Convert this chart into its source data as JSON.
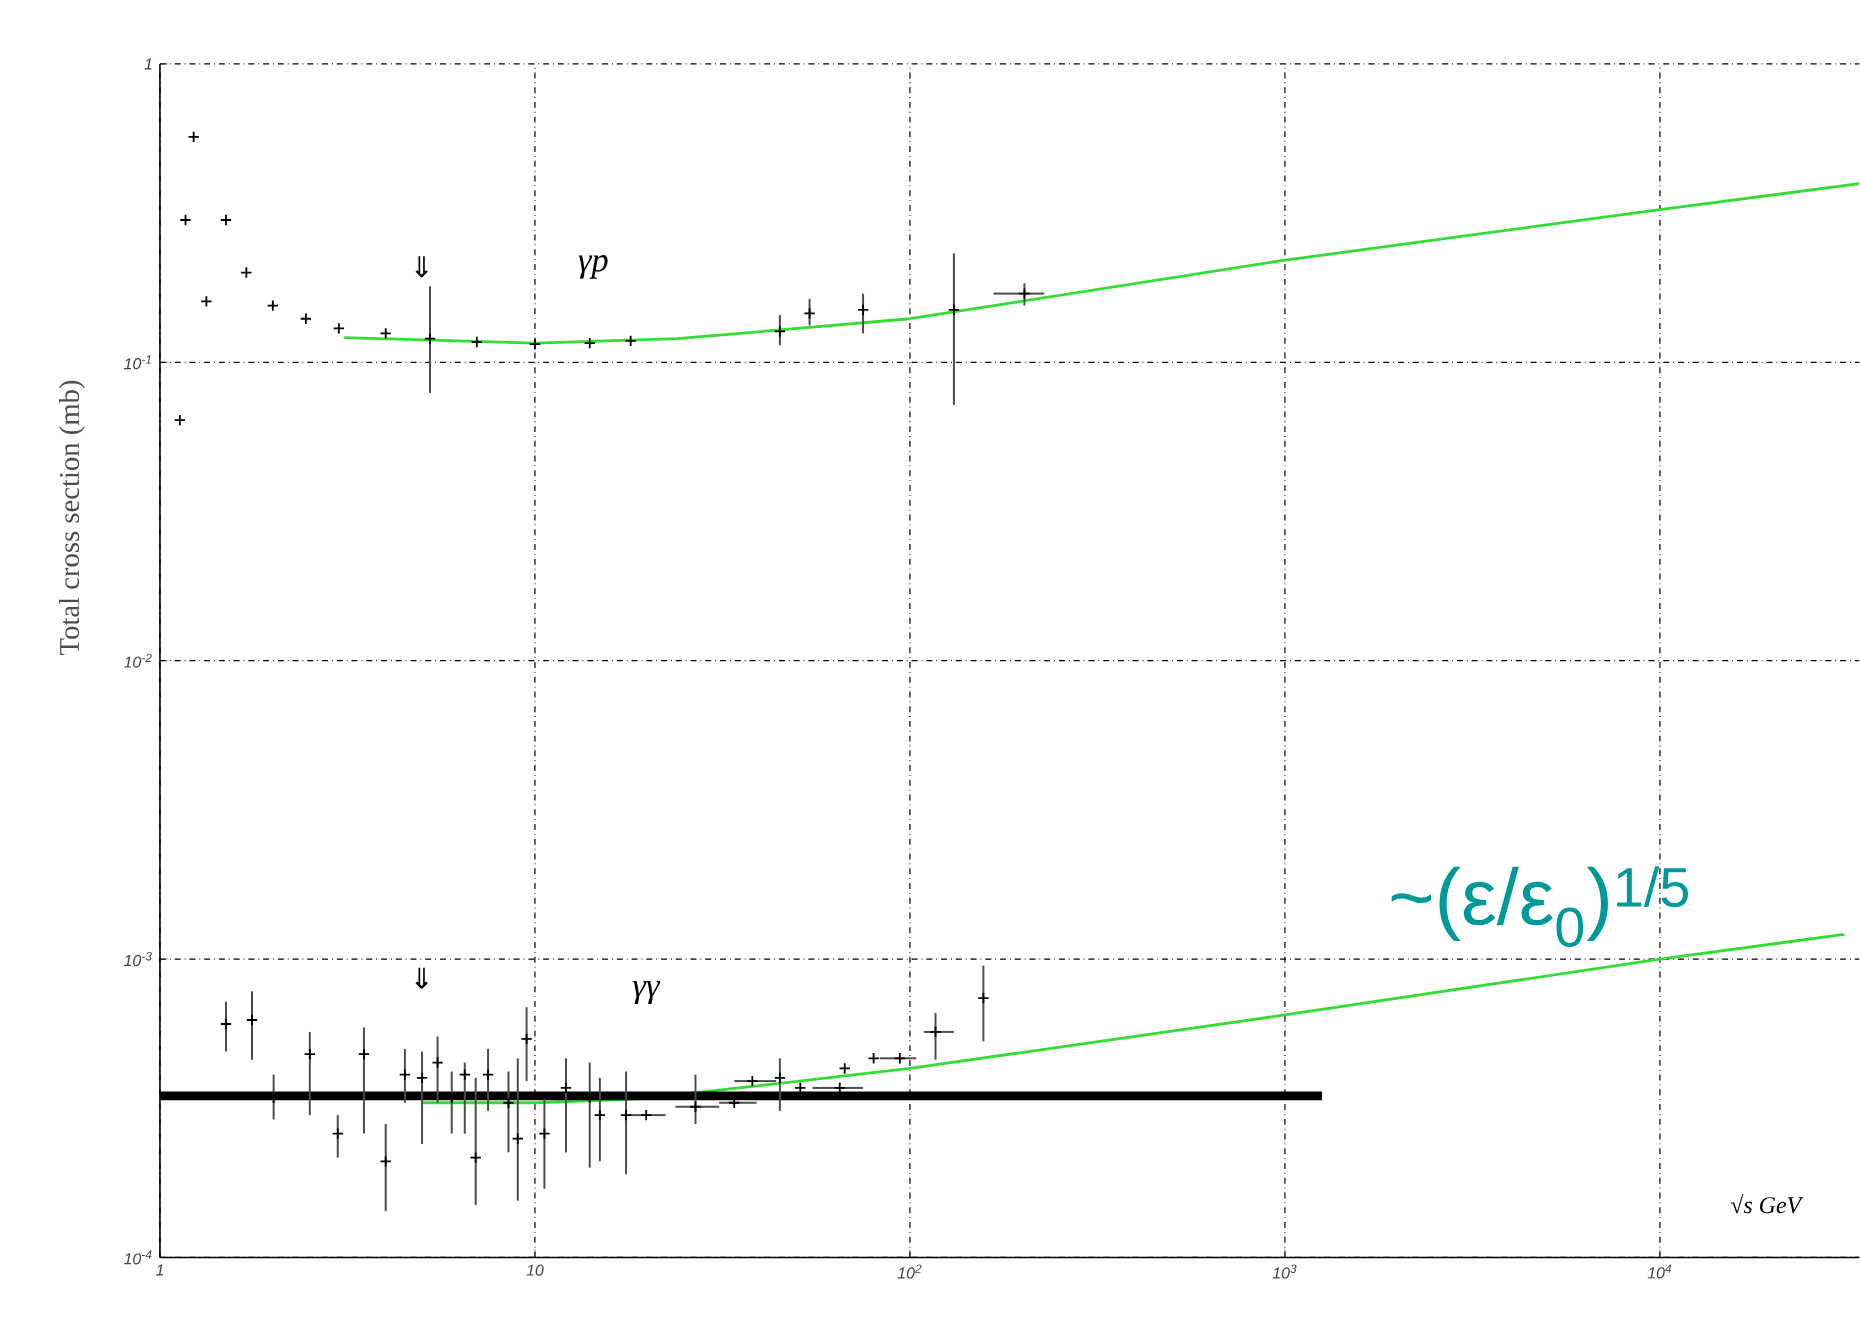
{
  "chart_data": {
    "type": "scatter",
    "ylabel": "Total cross section (mb)",
    "xlabel": "√s GeV",
    "log": "xy",
    "grid": true,
    "marker": "cross",
    "xlim": [
      1,
      34000
    ],
    "ylim": [
      0.0001,
      1
    ],
    "xticks": [
      1,
      10,
      {
        "value": 100,
        "label": "10$^{2}$"
      },
      {
        "value": 1000,
        "label": "10$^{3}$"
      },
      {
        "value": 10000,
        "label": "10$^{4}$"
      }
    ],
    "yticks": [
      {
        "value": 0.0001,
        "label": "10$^{-4}$"
      },
      {
        "value": 0.001,
        "label": "10$^{-3}$"
      },
      {
        "value": 0.01,
        "label": "10$^{-2}$"
      },
      {
        "value": 0.1,
        "label": "10$^{-1}$"
      },
      1
    ],
    "annotations": [
      "~(ε/ε$_{0}$)$^{1/5}$",
      "γp",
      "γγ",
      "⇓",
      "⇓"
    ],
    "series": [
      {
        "color": "#000000",
        "x": [
          1.13,
          1.17,
          1.23,
          1.33,
          1.5,
          1.7,
          2.0,
          2.45,
          3.0,
          4.0,
          5.25,
          7,
          10,
          14,
          18,
          45,
          54,
          75,
          131,
          202
        ],
        "values": [
          0.064,
          0.3,
          0.57,
          0.16,
          0.3,
          0.2,
          0.155,
          0.14,
          0.13,
          0.125,
          0.12,
          0.117,
          0.115,
          0.116,
          0.118,
          0.127,
          0.146,
          0.15,
          0.15,
          0.17
        ],
        "errors": [
          null,
          null,
          null,
          null,
          null,
          null,
          null,
          null,
          null,
          null,
          [
            0.079,
            0.18
          ],
          null,
          null,
          null,
          null,
          [
            0.114,
            0.144
          ],
          [
            0.133,
            0.163
          ],
          [
            0.125,
            0.17
          ],
          [
            0.072,
            0.232
          ],
          [
            0.155,
            0.184
          ]
        ],
        "xerrors": [
          null,
          null,
          null,
          null,
          null,
          null,
          null,
          null,
          null,
          null,
          null,
          null,
          null,
          null,
          null,
          null,
          null,
          null,
          null,
          [
            167,
            228
          ]
        ]
      },
      {
        "color": "#000000",
        "x": [
          1.5,
          1.76,
          2.01,
          2.51,
          2.98,
          3.5,
          4.0,
          4.5,
          5.0,
          5.5,
          6.0,
          6.5,
          6.95,
          7.5,
          8.5,
          9.0,
          9.5,
          10.6,
          12.1,
          14.0,
          14.9,
          17.5,
          19.8,
          26.8,
          34,
          38,
          45,
          51,
          65,
          67,
          80,
          94,
          117,
          157
        ],
        "values": [
          0.000606,
          0.000625,
          0.000343,
          0.00048,
          0.00026,
          0.00048,
          0.00021,
          0.00041,
          0.0004,
          0.00045,
          0.000343,
          0.00041,
          0.000216,
          0.00041,
          0.00033,
          0.00025,
          0.00054,
          0.00026,
          0.00037,
          0.000343,
          0.0003,
          0.0003,
          0.0003,
          0.00032,
          0.00033,
          0.00039,
          0.0004,
          0.00037,
          0.00037,
          0.00043,
          0.000465,
          0.000465,
          0.00057,
          0.00074
        ],
        "errors": [
          [
            0.00049,
            0.00072
          ],
          [
            0.00046,
            0.00078
          ],
          [
            0.00029,
            0.00041
          ],
          [
            0.0003,
            0.00057
          ],
          [
            0.000216,
            0.0003
          ],
          [
            0.00026,
            0.00059
          ],
          [
            0.000143,
            0.00028
          ],
          [
            0.00033,
            0.0005
          ],
          [
            0.00024,
            0.00049
          ],
          [
            0.00033,
            0.00055
          ],
          [
            0.00026,
            0.00042
          ],
          [
            0.00026,
            0.00045
          ],
          [
            0.00015,
            0.0004
          ],
          [
            0.00031,
            0.0005
          ],
          [
            0.000225,
            0.00042
          ],
          [
            0.000155,
            0.000465
          ],
          [
            0.00039,
            0.00069
          ],
          [
            0.00017,
            0.00034
          ],
          [
            0.000225,
            0.000465
          ],
          [
            0.0002,
            0.00045
          ],
          [
            0.00021,
            0.0004
          ],
          [
            0.00019,
            0.00042
          ],
          null,
          [
            0.00028,
            0.00041
          ],
          null,
          null,
          [
            0.00031,
            0.000465
          ],
          null,
          null,
          null,
          null,
          null,
          [
            0.00046,
            0.00066
          ],
          [
            0.00053,
            0.00095
          ]
        ],
        "xerrors": [
          null,
          null,
          null,
          null,
          null,
          null,
          null,
          null,
          null,
          null,
          null,
          null,
          null,
          null,
          null,
          null,
          null,
          null,
          null,
          null,
          null,
          null,
          [
            17.5,
            22.3
          ],
          [
            23.7,
            31
          ],
          [
            31,
            39
          ],
          [
            34,
            44
          ],
          null,
          null,
          [
            55,
            75
          ],
          null,
          null,
          [
            83,
            104
          ],
          [
            109,
            131
          ],
          null
        ]
      },
      {
        "type": "line",
        "marker": "none",
        "color": "#33dd33",
        "x": [
          3.1,
          10,
          24,
          100,
          1000,
          10000,
          34000
        ],
        "values": [
          0.121,
          0.116,
          0.12,
          0.14,
          0.22,
          0.325,
          0.397
        ]
      },
      {
        "type": "line",
        "marker": "none",
        "color": "#33dd33",
        "x": [
          5,
          10,
          19,
          35,
          100,
          1000,
          10000,
          31000
        ],
        "values": [
          0.00033,
          0.00033,
          0.00034,
          0.00037,
          0.00043,
          0.00065,
          0.001,
          0.00121
        ]
      },
      {
        "type": "line",
        "marker": "none",
        "color": "#000000",
        "x": [
          1,
          1256
        ],
        "values": [
          0.000348,
          0.000348
        ]
      }
    ]
  }
}
